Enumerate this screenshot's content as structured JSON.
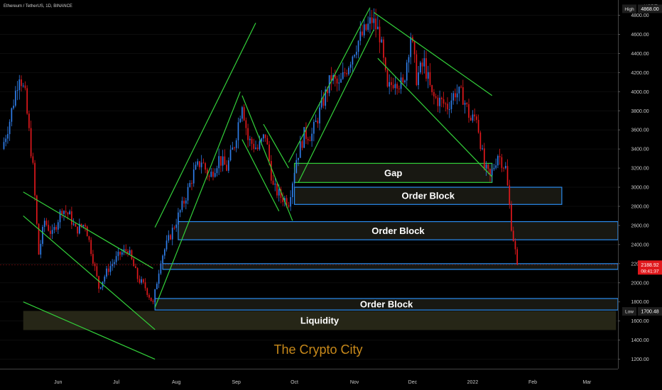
{
  "header": {
    "title": "Ethereum / TetherUS, 1D, BINANCE"
  },
  "watermark": "The Crypto City",
  "colors": {
    "up": "#2f7de8",
    "down": "#e0181c",
    "channel": "#33d13a",
    "block_edge": "#2a8cf0",
    "block_fill": "#1b1b14",
    "gap_edge": "#33d13a",
    "liquidity_fill": "#2a2a1a",
    "watermark": "#c8891a"
  },
  "chart_data": {
    "type": "candlestick",
    "title": "Ethereum / TetherUS, 1D, BINANCE",
    "y_axis": {
      "unit": "USDT",
      "ticks": [
        1200,
        1400,
        1600,
        1800,
        2000,
        2200,
        2400,
        2600,
        2800,
        3000,
        3200,
        3400,
        3600,
        3800,
        4000,
        4200,
        4400,
        4600,
        4800
      ],
      "tick_labels": [
        "1200.00",
        "1400.00",
        "1600.00",
        "1800.00",
        "2000.00",
        "2200.00",
        "2400.00",
        "2600.00",
        "2800.00",
        "3000.00",
        "3200.00",
        "3400.00",
        "3600.00",
        "3800.00",
        "4000.00",
        "4200.00",
        "4400.00",
        "4600.00",
        "4800.00"
      ],
      "range": [
        1100,
        4960
      ]
    },
    "x_axis": {
      "labels": [
        "Jun",
        "Jul",
        "Aug",
        "Sep",
        "Oct",
        "Nov",
        "Dec",
        "2022",
        "Feb",
        "Mar"
      ],
      "range": [
        "2021-05-02",
        "2022-03-17"
      ]
    },
    "price_tags": [
      {
        "name": "High",
        "label": "High",
        "value": "4868.00"
      },
      {
        "name": "current",
        "value": "2188.92",
        "sub": "08:41:37"
      },
      {
        "name": "Low",
        "label": "Low",
        "value": "1700.48"
      }
    ],
    "closes": [
      {
        "date": "2021-05-03",
        "close": 3400
      },
      {
        "date": "2021-05-07",
        "close": 3700
      },
      {
        "date": "2021-05-12",
        "close": 4200
      },
      {
        "date": "2021-05-15",
        "close": 3950
      },
      {
        "date": "2021-05-19",
        "close": 3200
      },
      {
        "date": "2021-05-22",
        "close": 2300
      },
      {
        "date": "2021-05-25",
        "close": 2650
      },
      {
        "date": "2021-05-29",
        "close": 2500
      },
      {
        "date": "2021-06-03",
        "close": 2780
      },
      {
        "date": "2021-06-07",
        "close": 2700
      },
      {
        "date": "2021-06-10",
        "close": 2550
      },
      {
        "date": "2021-06-15",
        "close": 2620
      },
      {
        "date": "2021-06-19",
        "close": 2250
      },
      {
        "date": "2021-06-22",
        "close": 1950
      },
      {
        "date": "2021-06-27",
        "close": 2150
      },
      {
        "date": "2021-07-03",
        "close": 2300
      },
      {
        "date": "2021-07-07",
        "close": 2350
      },
      {
        "date": "2021-07-12",
        "close": 2050
      },
      {
        "date": "2021-07-16",
        "close": 1950
      },
      {
        "date": "2021-07-20",
        "close": 1780
      },
      {
        "date": "2021-07-24",
        "close": 2250
      },
      {
        "date": "2021-07-30",
        "close": 2550
      },
      {
        "date": "2021-08-05",
        "close": 2850
      },
      {
        "date": "2021-08-10",
        "close": 3150
      },
      {
        "date": "2021-08-14",
        "close": 3280
      },
      {
        "date": "2021-08-18",
        "close": 3100
      },
      {
        "date": "2021-08-23",
        "close": 3300
      },
      {
        "date": "2021-08-27",
        "close": 3200
      },
      {
        "date": "2021-08-31",
        "close": 3450
      },
      {
        "date": "2021-09-04",
        "close": 3900
      },
      {
        "date": "2021-09-07",
        "close": 3500
      },
      {
        "date": "2021-09-12",
        "close": 3400
      },
      {
        "date": "2021-09-16",
        "close": 3550
      },
      {
        "date": "2021-09-20",
        "close": 3000
      },
      {
        "date": "2021-09-24",
        "close": 2900
      },
      {
        "date": "2021-09-28",
        "close": 2850
      },
      {
        "date": "2021-10-02",
        "close": 3300
      },
      {
        "date": "2021-10-06",
        "close": 3550
      },
      {
        "date": "2021-10-10",
        "close": 3550
      },
      {
        "date": "2021-10-15",
        "close": 3850
      },
      {
        "date": "2021-10-20",
        "close": 4150
      },
      {
        "date": "2021-10-24",
        "close": 4050
      },
      {
        "date": "2021-10-29",
        "close": 4300
      },
      {
        "date": "2021-11-02",
        "close": 4500
      },
      {
        "date": "2021-11-07",
        "close": 4650
      },
      {
        "date": "2021-11-10",
        "close": 4750
      },
      {
        "date": "2021-11-14",
        "close": 4600
      },
      {
        "date": "2021-11-18",
        "close": 4000
      },
      {
        "date": "2021-11-22",
        "close": 4150
      },
      {
        "date": "2021-11-26",
        "close": 4050
      },
      {
        "date": "2021-11-30",
        "close": 4600
      },
      {
        "date": "2021-12-03",
        "close": 4150
      },
      {
        "date": "2021-12-07",
        "close": 4300
      },
      {
        "date": "2021-12-11",
        "close": 3950
      },
      {
        "date": "2021-12-15",
        "close": 3900
      },
      {
        "date": "2021-12-19",
        "close": 3850
      },
      {
        "date": "2021-12-23",
        "close": 4000
      },
      {
        "date": "2021-12-27",
        "close": 3950
      },
      {
        "date": "2021-12-31",
        "close": 3700
      },
      {
        "date": "2022-01-03",
        "close": 3750
      },
      {
        "date": "2022-01-07",
        "close": 3200
      },
      {
        "date": "2022-01-10",
        "close": 3100
      },
      {
        "date": "2022-01-14",
        "close": 3350
      },
      {
        "date": "2022-01-18",
        "close": 3200
      },
      {
        "date": "2022-01-21",
        "close": 2600
      },
      {
        "date": "2022-01-24",
        "close": 2189
      }
    ],
    "zones": [
      {
        "type": "gap",
        "label": "Gap",
        "price_low": 3050,
        "price_high": 3250,
        "start": "2021-10-01",
        "end": "2022-01-11"
      },
      {
        "type": "order_block",
        "label": "Order Block",
        "price_low": 2820,
        "price_high": 3000,
        "start": "2021-10-01",
        "end": "2022-02-16"
      },
      {
        "type": "order_block",
        "label": "Order Block",
        "price_low": 2450,
        "price_high": 2640,
        "start": "2021-08-02",
        "end": "2022-03-17"
      },
      {
        "type": "order_block",
        "label": "",
        "price_low": 2140,
        "price_high": 2200,
        "start": "2021-07-25",
        "end": "2022-03-17"
      },
      {
        "type": "order_block",
        "label": "Order Block",
        "price_low": 1715,
        "price_high": 1835,
        "start": "2021-07-21",
        "end": "2022-03-17"
      },
      {
        "type": "liquidity",
        "label": "Liquidity",
        "price_low": 1505,
        "price_high": 1705,
        "start": "2021-05-14",
        "end": "2022-03-16"
      }
    ],
    "trend_lines": [
      {
        "channel": "may-jul-down",
        "from": [
          "2021-05-14",
          2700
        ],
        "to": [
          "2021-07-21",
          1510
        ]
      },
      {
        "channel": "may-jul-down",
        "from": [
          "2021-05-14",
          1800
        ],
        "to": [
          "2021-07-21",
          1200
        ]
      },
      {
        "channel": "may-jul-down",
        "from": [
          "2021-05-14",
          2950
        ],
        "to": [
          "2021-07-20",
          2150
        ]
      },
      {
        "channel": "jul-sep-up",
        "from": [
          "2021-07-21",
          2580
        ],
        "to": [
          "2021-09-11",
          4720
        ]
      },
      {
        "channel": "jul-sep-up",
        "from": [
          "2021-07-21",
          1740
        ],
        "to": [
          "2021-09-03",
          4000
        ]
      },
      {
        "channel": "sep-wedge",
        "from": [
          "2021-09-04",
          3960
        ],
        "to": [
          "2021-09-30",
          2650
        ]
      },
      {
        "channel": "sep-wedge",
        "from": [
          "2021-09-04",
          3500
        ],
        "to": [
          "2021-09-23",
          2750
        ]
      },
      {
        "channel": "sep-wedge",
        "from": [
          "2021-09-15",
          3660
        ],
        "to": [
          "2021-09-28",
          3200
        ]
      },
      {
        "channel": "sep-nov-up",
        "from": [
          "2021-09-28",
          3260
        ],
        "to": [
          "2021-11-09",
          4880
        ]
      },
      {
        "channel": "sep-nov-up",
        "from": [
          "2021-10-03",
          3050
        ],
        "to": [
          "2021-11-11",
          4650
        ]
      },
      {
        "channel": "nov-jan-down",
        "from": [
          "2021-11-11",
          4830
        ],
        "to": [
          "2022-01-11",
          3960
        ]
      },
      {
        "channel": "nov-jan-down",
        "from": [
          "2021-11-13",
          4350
        ],
        "to": [
          "2022-01-11",
          3110
        ]
      }
    ]
  }
}
